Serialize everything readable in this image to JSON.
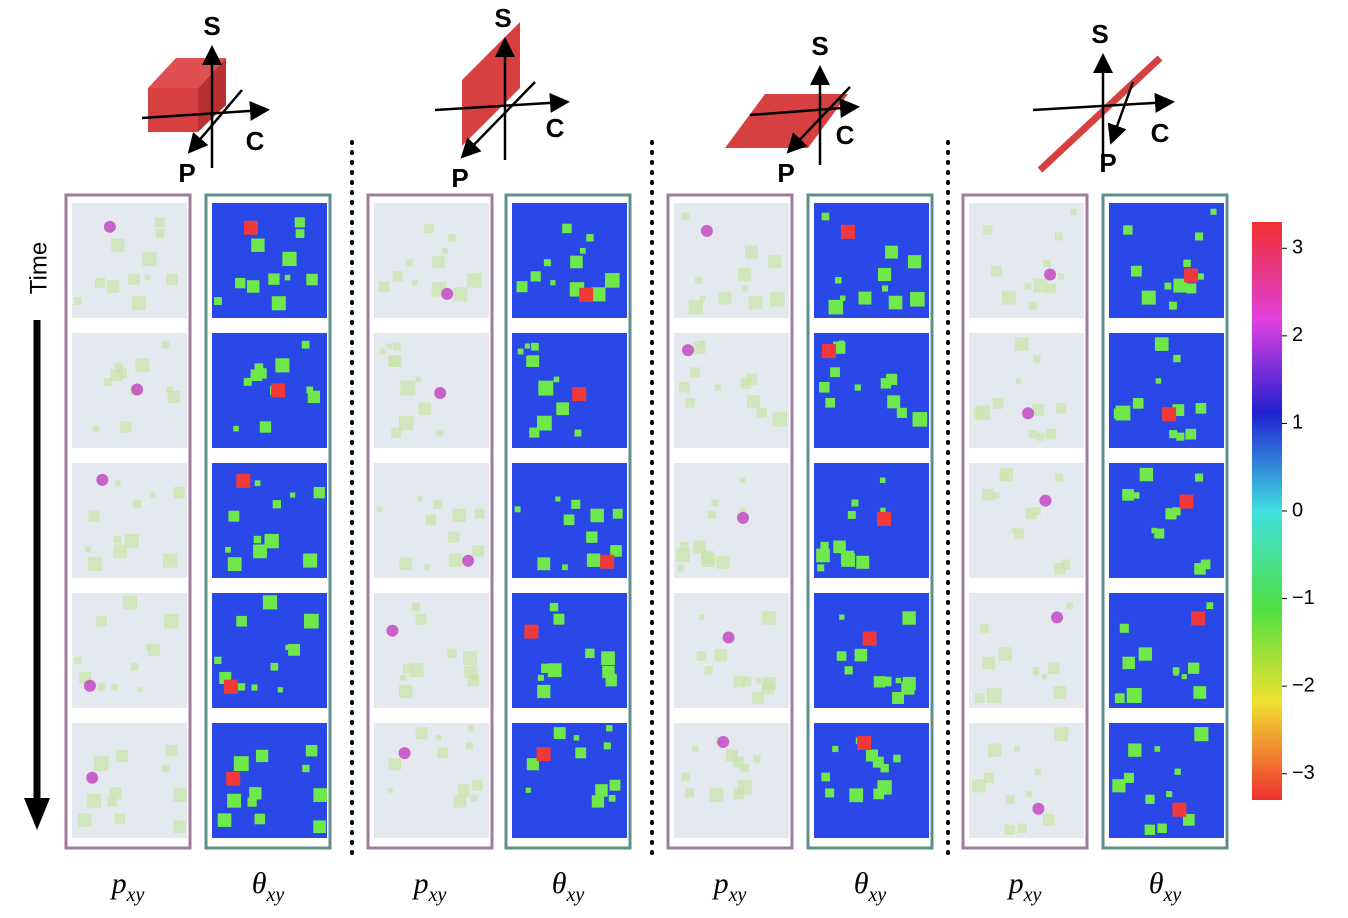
{
  "panels": [
    {
      "axes": {
        "s": "S",
        "c": "C",
        "p": "P"
      },
      "columns": [
        {
          "symbol": "p",
          "subscript": "xy"
        },
        {
          "symbol": "θ",
          "subscript": "xy"
        }
      ]
    },
    {
      "axes": {
        "s": "S",
        "c": "C",
        "p": "P"
      },
      "columns": [
        {
          "symbol": "p",
          "subscript": "xy"
        },
        {
          "symbol": "θ",
          "subscript": "xy"
        }
      ]
    },
    {
      "axes": {
        "s": "S",
        "c": "C",
        "p": "P"
      },
      "columns": [
        {
          "symbol": "p",
          "subscript": "xy"
        },
        {
          "symbol": "θ",
          "subscript": "xy"
        }
      ]
    },
    {
      "axes": {
        "s": "S",
        "c": "C",
        "p": "P"
      },
      "columns": [
        {
          "symbol": "p",
          "subscript": "xy"
        },
        {
          "symbol": "θ",
          "subscript": "xy"
        }
      ]
    }
  ],
  "time_label": "Time",
  "colorbar": {
    "lim": [
      -3.3,
      3.3
    ],
    "ticks": [
      3,
      2,
      1,
      0,
      {
        "value": -1,
        "label": "−1"
      },
      {
        "value": -2,
        "label": "−2"
      },
      {
        "value": -3,
        "label": "−3"
      }
    ]
  }
}
